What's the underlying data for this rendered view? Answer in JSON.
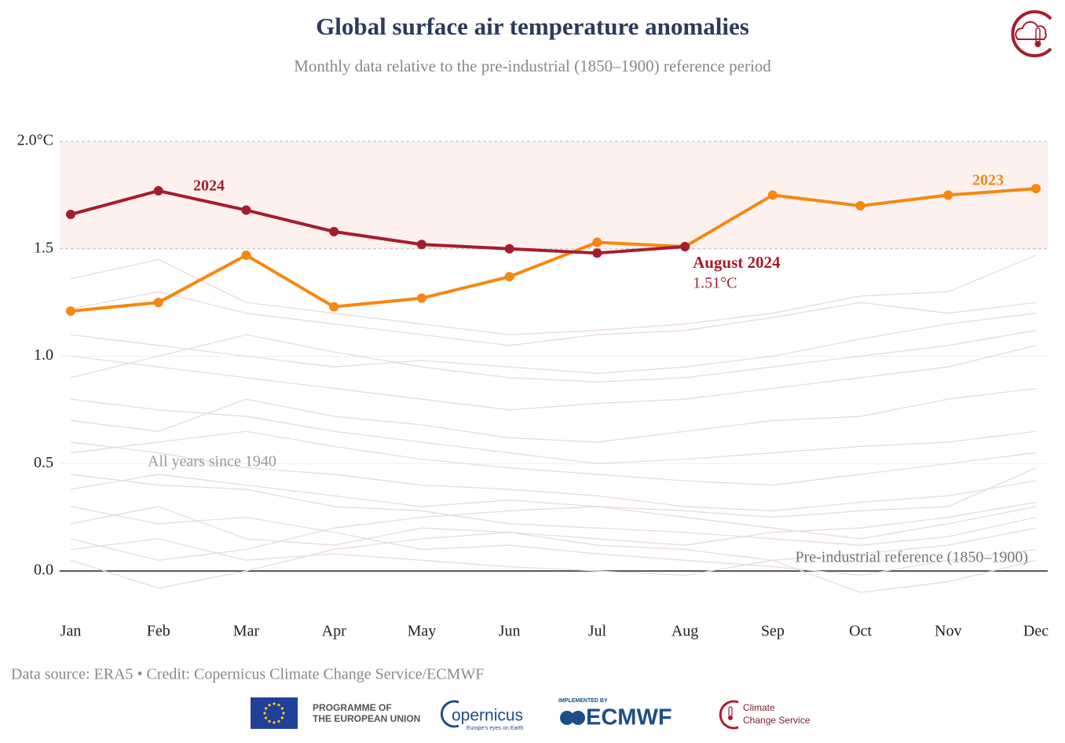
{
  "chart_data": {
    "type": "line",
    "title": "Global surface air temperature anomalies",
    "subtitle": "Monthly data relative to the pre-industrial (1850–1900) reference period",
    "categories": [
      "Jan",
      "Feb",
      "Mar",
      "Apr",
      "May",
      "Jun",
      "Jul",
      "Aug",
      "Sep",
      "Oct",
      "Nov",
      "Dec"
    ],
    "series": [
      {
        "name": "2023",
        "color": "#f7870f",
        "values": [
          1.21,
          1.25,
          1.47,
          1.23,
          1.27,
          1.37,
          1.53,
          1.51,
          1.75,
          1.7,
          1.75,
          1.78
        ]
      },
      {
        "name": "2024",
        "color": "#a51d2d",
        "values": [
          1.66,
          1.77,
          1.68,
          1.58,
          1.52,
          1.5,
          1.48,
          1.51,
          null,
          null,
          null,
          null
        ],
        "value_labels": [
          null,
          null,
          null,
          null,
          null,
          null,
          null,
          "1.51°C",
          null,
          null,
          null,
          null
        ]
      }
    ],
    "background": {
      "label": "All years since 1940",
      "color": "#e8dcda",
      "values": [
        [
          0.45,
          0.4,
          0.38,
          0.3,
          0.28,
          0.22,
          0.2,
          0.18,
          0.15,
          0.12,
          0.16,
          0.25
        ],
        [
          0.3,
          0.22,
          0.25,
          0.18,
          0.1,
          0.12,
          0.08,
          0.05,
          0.02,
          -0.02,
          0.05,
          0.1
        ],
        [
          0.6,
          0.55,
          0.48,
          0.45,
          0.4,
          0.38,
          0.35,
          0.3,
          0.28,
          0.32,
          0.35,
          0.42
        ],
        [
          0.15,
          0.05,
          0.1,
          0.2,
          0.25,
          0.28,
          0.3,
          0.25,
          0.2,
          0.15,
          0.22,
          0.3
        ],
        [
          0.8,
          0.75,
          0.72,
          0.65,
          0.6,
          0.55,
          0.5,
          0.52,
          0.55,
          0.58,
          0.6,
          0.65
        ],
        [
          0.05,
          -0.08,
          0.0,
          0.1,
          0.15,
          0.18,
          0.12,
          0.1,
          0.05,
          -0.1,
          -0.05,
          0.05
        ],
        [
          0.38,
          0.45,
          0.4,
          0.35,
          0.3,
          0.33,
          0.3,
          0.28,
          0.25,
          0.28,
          0.3,
          0.48
        ],
        [
          1.0,
          0.95,
          0.9,
          0.85,
          0.8,
          0.75,
          0.78,
          0.8,
          0.85,
          0.9,
          0.95,
          1.05
        ],
        [
          0.22,
          0.3,
          0.15,
          0.12,
          0.2,
          0.18,
          0.15,
          0.12,
          0.18,
          0.2,
          0.25,
          0.32
        ],
        [
          1.1,
          1.05,
          1.0,
          0.95,
          0.98,
          0.95,
          0.92,
          0.95,
          1.0,
          1.08,
          1.15,
          1.2
        ],
        [
          0.55,
          0.6,
          0.65,
          0.58,
          0.52,
          0.48,
          0.45,
          0.42,
          0.4,
          0.45,
          0.5,
          0.55
        ],
        [
          1.36,
          1.45,
          1.25,
          1.2,
          1.15,
          1.1,
          1.12,
          1.15,
          1.2,
          1.28,
          1.3,
          1.47
        ],
        [
          0.7,
          0.65,
          0.8,
          0.72,
          0.68,
          0.62,
          0.6,
          0.65,
          0.7,
          0.72,
          0.8,
          0.85
        ],
        [
          0.1,
          0.15,
          0.05,
          0.08,
          0.05,
          0.02,
          0.0,
          -0.02,
          0.05,
          0.08,
          0.12,
          0.2
        ],
        [
          0.9,
          1.0,
          1.1,
          1.02,
          0.95,
          0.9,
          0.88,
          0.9,
          0.95,
          1.0,
          1.05,
          1.12
        ],
        [
          1.22,
          1.3,
          1.2,
          1.15,
          1.1,
          1.05,
          1.1,
          1.12,
          1.18,
          1.25,
          1.2,
          1.25
        ]
      ]
    },
    "annotations": {
      "highlight": "August 2024",
      "reference": "Pre-industrial reference (1850–1900)"
    },
    "highlight_band": [
      1.5,
      2.0
    ],
    "ylim": [
      -0.2,
      2.0
    ],
    "yticks": [
      {
        "value": 0,
        "label": "0.0"
      },
      0.5,
      {
        "value": 1,
        "label": "1.0"
      },
      1.5,
      {
        "value": 2,
        "label": "2.0°C"
      }
    ],
    "grid": true,
    "footer": "Data source: ERA5 • Credit: Copernicus Climate Change Service/ECMWF"
  },
  "logos": {
    "eu": "PROGRAMME OF",
    "eu2": "THE EUROPEAN UNION",
    "copernicus": "opernicus",
    "copernicus_tag": "Europe's eyes on Earth",
    "ecmwf_tag": "IMPLEMENTED BY",
    "ecmwf": "ECMWF",
    "c3s": "Climate",
    "c3s2": "Change Service"
  }
}
